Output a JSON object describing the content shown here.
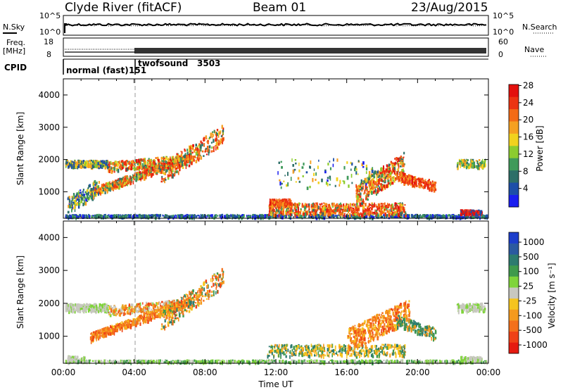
{
  "header": {
    "station": "Clyde River (fitACF)",
    "beam": "Beam 01",
    "date": "23/Aug/2015"
  },
  "side_labels": {
    "nsky": "N.Sky",
    "freq_line1": "Freq.",
    "freq_line2": "[MHz]",
    "cpid": "CPID",
    "nsearch": "N.Search",
    "nave": "Nave"
  },
  "cpid_modes": [
    {
      "label": "normal (fast)",
      "id": "151",
      "start": "00:00",
      "end": "04:00"
    },
    {
      "label": "twofsound",
      "id": "3503",
      "start": "04:00",
      "end": "00:00"
    }
  ],
  "chart_data": [
    {
      "type": "line",
      "name": "noise",
      "y_left_ticks": [
        "10^5",
        "10^0"
      ],
      "y_right_ticks": [
        "10^5",
        "10^0"
      ],
      "scale": "log"
    },
    {
      "type": "line",
      "name": "frequency-nave",
      "y_left_ticks": [
        "18",
        "8"
      ],
      "y_right_ticks": [
        "60",
        "0"
      ],
      "ylim_left": [
        8,
        18
      ],
      "ylim_right": [
        0,
        60
      ]
    },
    {
      "type": "heatmap",
      "name": "power",
      "ylabel": "Slant Range [km]",
      "ylim": [
        180,
        4500
      ],
      "y_ticks": [
        1000,
        2000,
        3000,
        4000
      ],
      "colorbar": {
        "label": "Power [dB]",
        "ticks": [
          "4",
          "8",
          "12",
          "16",
          "20",
          "24",
          "28"
        ],
        "colors": [
          "#1a1ef0",
          "#1d4fa8",
          "#2d6f68",
          "#3f9a5a",
          "#8ccc2f",
          "#f1d21e",
          "#f5a021",
          "#f36b16",
          "#ec3412",
          "#e3110d"
        ]
      }
    },
    {
      "type": "heatmap",
      "name": "velocity",
      "ylabel": "Slant Range [km]",
      "xlabel": "Time UT",
      "ylim": [
        180,
        4500
      ],
      "y_ticks": [
        1000,
        2000,
        3000,
        4000
      ],
      "x_ticks": [
        "00:00",
        "04:00",
        "08:00",
        "12:00",
        "16:00",
        "20:00",
        "00:00"
      ],
      "colorbar": {
        "label": "Velocity [m s⁻¹]",
        "ticks": [
          "1000",
          "500",
          "100",
          "25",
          "-25",
          "-100",
          "-500",
          "-1000"
        ],
        "colors": [
          "#1c3ecb",
          "#2b5aa0",
          "#2d7b6f",
          "#3f9a4c",
          "#7fd43a",
          "#c8c8c0",
          "#f5c41f",
          "#f59a1e",
          "#f4701b",
          "#ef4217",
          "#e51b10"
        ]
      }
    }
  ]
}
